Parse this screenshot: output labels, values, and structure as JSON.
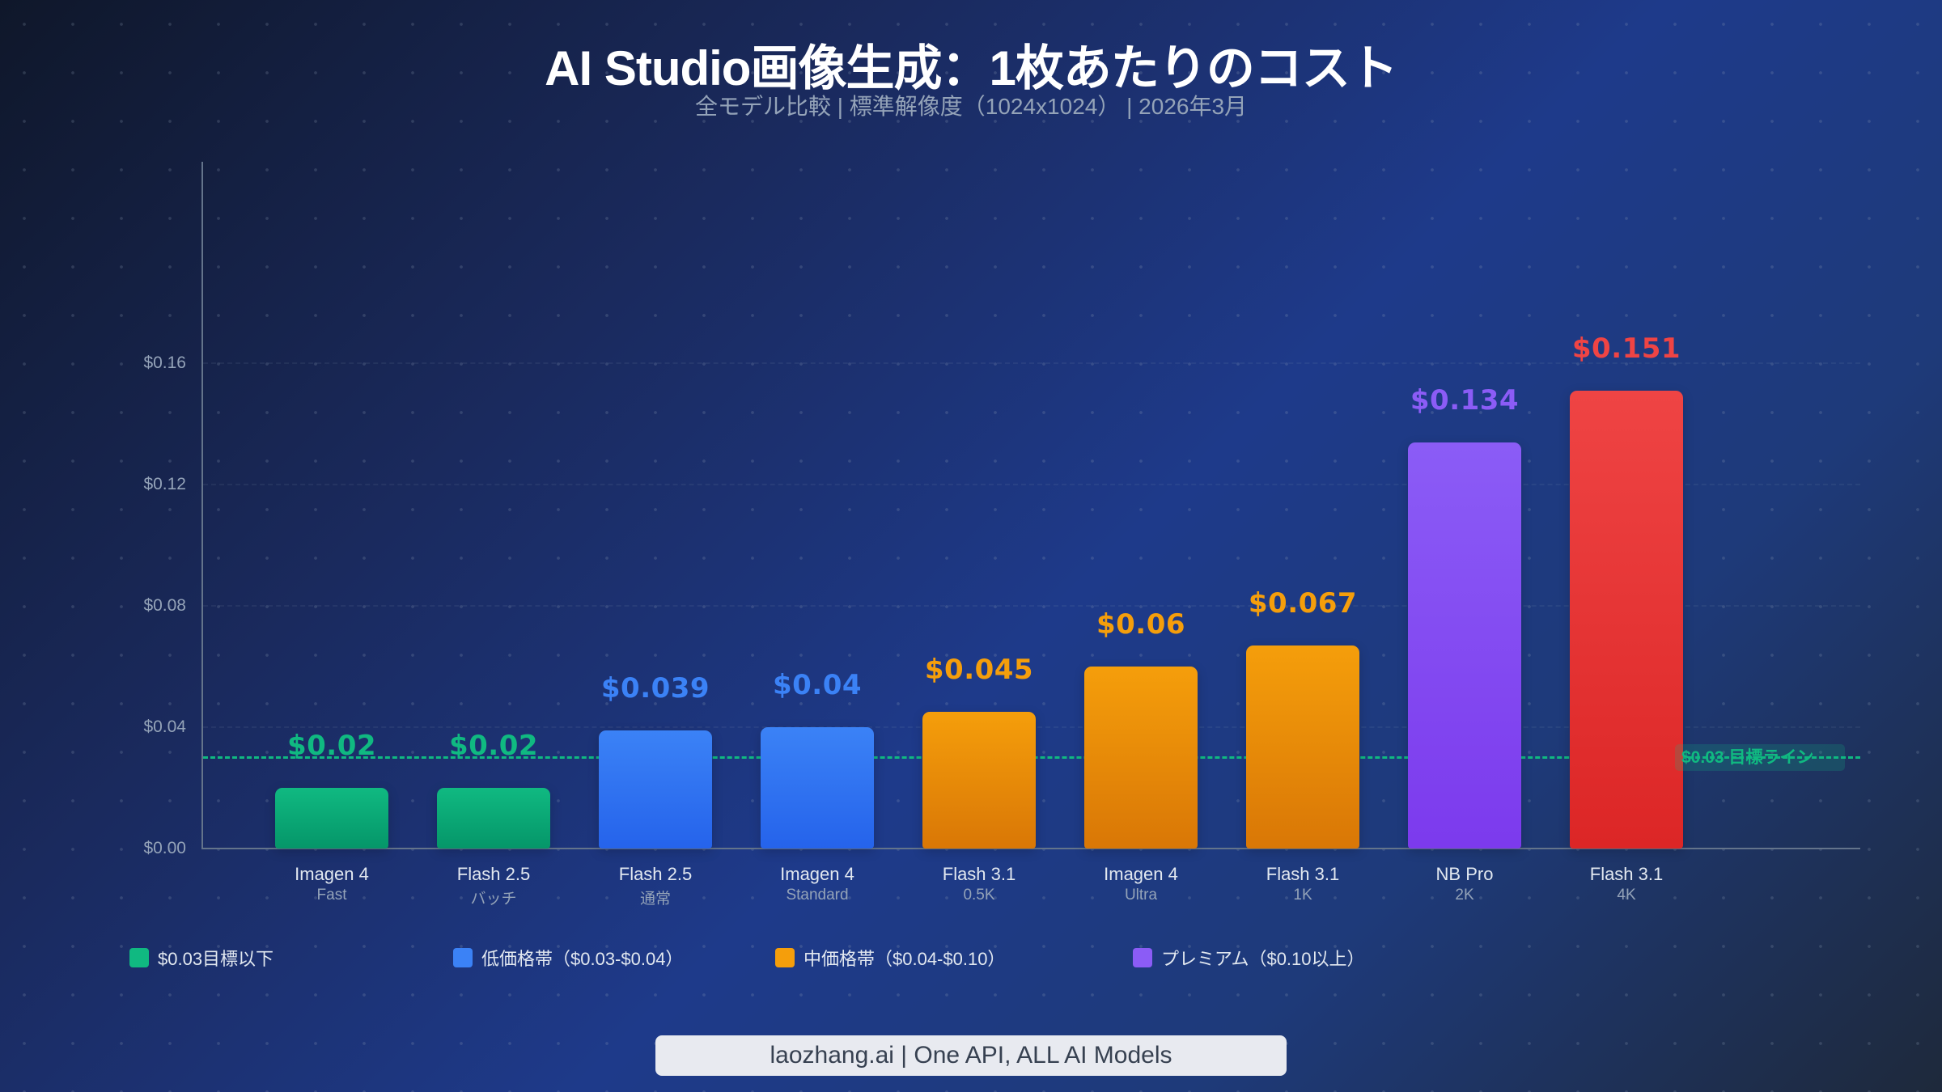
{
  "header": {
    "title": "AI Studio画像生成：1枚あたりのコスト",
    "subtitle": "全モデル比較 | 標準解像度（1024x1024） | 2026年3月"
  },
  "colors": {
    "green": "#10b981",
    "blue": "#3b82f6",
    "orange": "#f59e0b",
    "purple": "#8b5cf6",
    "red": "#ef4444"
  },
  "target_line": {
    "value": 0.03,
    "label": "$0.03 目標ライン",
    "color": "#10b981"
  },
  "legend": [
    {
      "label": "$0.03目標以下",
      "color": "#10b981"
    },
    {
      "label": "低価格帯（$0.03-$0.04）",
      "color": "#3b82f6"
    },
    {
      "label": "中価格帯（$0.04-$0.10）",
      "color": "#f59e0b"
    },
    {
      "label": "プレミアム（$0.10以上）",
      "color": "#8b5cf6"
    }
  ],
  "footer": {
    "text": "laozhang.ai | One API, ALL AI Models"
  },
  "chart_data": {
    "type": "bar",
    "title": "AI Studio画像生成：1枚あたりのコスト",
    "subtitle": "全モデル比較 | 標準解像度（1024x1024） | 2026年3月",
    "xlabel": "",
    "ylabel": "",
    "ylim": [
      0,
      0.17
    ],
    "yticks": [
      0.0,
      0.04,
      0.08,
      0.12,
      0.16
    ],
    "ytick_labels": [
      "$0.00",
      "$0.04",
      "$0.08",
      "$0.12",
      "$0.16"
    ],
    "grid": true,
    "legend_position": "bottom",
    "categories": [
      {
        "name": "Imagen 4",
        "sub": "Fast"
      },
      {
        "name": "Flash 2.5",
        "sub": "バッチ"
      },
      {
        "name": "Flash 2.5",
        "sub": "通常"
      },
      {
        "name": "Imagen 4",
        "sub": "Standard"
      },
      {
        "name": "Flash 3.1",
        "sub": "0.5K"
      },
      {
        "name": "Imagen 4",
        "sub": "Ultra"
      },
      {
        "name": "Flash 3.1",
        "sub": "1K"
      },
      {
        "name": "NB Pro",
        "sub": "2K"
      },
      {
        "name": "Flash 3.1",
        "sub": "4K"
      }
    ],
    "values": [
      0.02,
      0.02,
      0.039,
      0.04,
      0.045,
      0.06,
      0.067,
      0.134,
      0.151
    ],
    "value_labels": [
      "$0.02",
      "$0.02",
      "$0.039",
      "$0.04",
      "$0.045",
      "$0.06",
      "$0.067",
      "$0.134",
      "$0.151"
    ],
    "bar_colors": [
      [
        "#10b981",
        "#059669"
      ],
      [
        "#10b981",
        "#059669"
      ],
      [
        "#3b82f6",
        "#2563eb"
      ],
      [
        "#3b82f6",
        "#2563eb"
      ],
      [
        "#f59e0b",
        "#d97706"
      ],
      [
        "#f59e0b",
        "#d97706"
      ],
      [
        "#f59e0b",
        "#d97706"
      ],
      [
        "#8b5cf6",
        "#7c3aed"
      ],
      [
        "#ef4444",
        "#dc2626"
      ]
    ],
    "annotations": [
      {
        "type": "hline",
        "y": 0.03,
        "text": "$0.03 目標ライン",
        "style": "dashed",
        "color": "#10b981"
      }
    ]
  }
}
